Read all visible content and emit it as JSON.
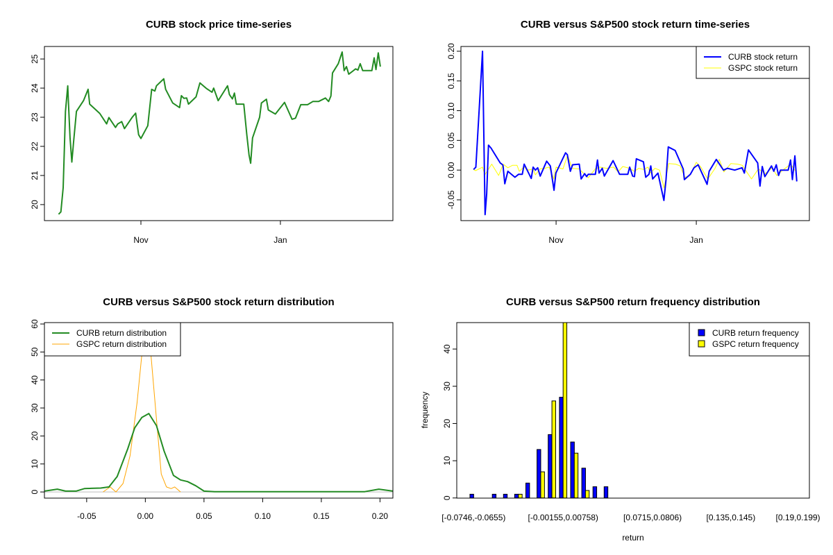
{
  "chart_data": [
    {
      "type": "line",
      "title": "CURB stock price time-series",
      "xlabel": "",
      "ylabel": "",
      "x_ticks": [
        {
          "value": 0,
          "label": "Nov"
        },
        {
          "value": 61,
          "label": "Jan"
        }
      ],
      "y_ticks": [
        20,
        21,
        22,
        23,
        24,
        25
      ],
      "xlim": [
        -42.2,
        110.2
      ],
      "ylim": [
        19.45,
        25.43
      ],
      "series": [
        {
          "name": "CURB",
          "color": "#228B22",
          "x": [
            -36,
            -35,
            -34,
            -33.5,
            -33,
            -32,
            -31.7,
            -31,
            -30.2,
            -29.5,
            -28.2,
            -25.1,
            -23.1,
            -22.4,
            -18,
            -15,
            -14,
            -11.1,
            -10.1,
            -8.4,
            -7.2,
            -3.9,
            -2.3,
            -1,
            0,
            3,
            4.7,
            6.1,
            6.8,
            10,
            10.8,
            13.9,
            16.9,
            17.7,
            18.8,
            20,
            20.8,
            24.1,
            25.8,
            28.6,
            31.1,
            31.8,
            33.8,
            37.9,
            38.7,
            40,
            40.9,
            41.7,
            45,
            46.3,
            47.3,
            48,
            48.8,
            51.9,
            52.7,
            54.9,
            55.7,
            58.8,
            62.8,
            66.1,
            67.6,
            69.9,
            72.9,
            75.2,
            77.7,
            80.7,
            82.1,
            83.1,
            83.8,
            86.3,
            88,
            88.9,
            89.9,
            90.9,
            93.9,
            94.9,
            95.9,
            97,
            101,
            102,
            102.8,
            103.8,
            104.7
          ],
          "y": [
            19.67,
            19.75,
            20.58,
            21.9,
            23.2,
            24.08,
            23.5,
            22.3,
            21.46,
            22.1,
            23.2,
            23.57,
            23.96,
            23.45,
            23.13,
            22.77,
            22.99,
            22.65,
            22.77,
            22.85,
            22.61,
            22.99,
            23.14,
            22.4,
            22.27,
            22.71,
            23.96,
            23.9,
            24.08,
            24.32,
            23.96,
            23.49,
            23.33,
            23.74,
            23.65,
            23.66,
            23.45,
            23.7,
            24.18,
            23.99,
            23.86,
            24.0,
            23.57,
            24.08,
            23.78,
            23.63,
            23.83,
            23.45,
            23.45,
            22.41,
            21.7,
            21.42,
            22.29,
            23.0,
            23.49,
            23.62,
            23.25,
            23.11,
            23.51,
            22.93,
            22.97,
            23.43,
            23.43,
            23.54,
            23.54,
            23.66,
            23.54,
            23.73,
            24.52,
            24.84,
            25.24,
            24.6,
            24.74,
            24.48,
            24.66,
            24.62,
            24.84,
            24.6,
            24.6,
            25.04,
            24.64,
            25.21,
            24.74
          ]
        }
      ]
    },
    {
      "type": "line",
      "title": "CURB versus S&P500 stock return time-series",
      "xlabel": "",
      "ylabel": "",
      "x_ticks": [
        {
          "value": 0,
          "label": "Nov"
        },
        {
          "value": 61,
          "label": "Jan"
        }
      ],
      "y_ticks": [
        -0.05,
        0.0,
        0.05,
        0.1,
        0.15,
        0.2
      ],
      "y_tick_labels": [
        "-0.05",
        "0.00",
        "0.05",
        "0.10",
        "0.15",
        "0.20"
      ],
      "xlim": [
        -41.4,
        110.2
      ],
      "ylim": [
        -0.085,
        0.208
      ],
      "legend": {
        "position": "top-right",
        "entries": [
          "CURB stock return",
          "GSPC stock return"
        ]
      },
      "series": [
        {
          "name": "CURB stock return",
          "color": "#0000FF",
          "x": [
            -35.9,
            -34.9,
            -33.5,
            -32,
            -30.9,
            -30.2,
            -29.4,
            -28.3,
            -24.3,
            -23.6,
            -23.1,
            -22.3,
            -21,
            -17.9,
            -16.3,
            -14.7,
            -13.9,
            -10.8,
            -10,
            -9,
            -8,
            -6.9,
            -4.1,
            -2.5,
            -0.9,
            -0.1,
            4.1,
            4.9,
            6.2,
            7.2,
            10.1,
            10.9,
            12.4,
            13.3,
            14,
            17.1,
            18,
            18.7,
            20.1,
            21,
            24.8,
            27.6,
            31.2,
            32,
            33.3,
            34.1,
            34.9,
            38,
            39,
            40.4,
            41.2,
            42,
            44.3,
            46.9,
            47.8,
            48.8,
            51.8,
            55.3,
            55.8,
            58.4,
            60,
            61.8,
            65.7,
            66.6,
            69.7,
            72.8,
            74.6,
            77.7,
            80.9,
            81.9,
            83.7,
            87.7,
            88.7,
            89.7,
            90.8,
            93.7,
            94.7,
            95.8,
            96.8,
            97.6,
            101,
            102,
            102.8,
            103.9,
            104.7
          ],
          "y": [
            0.001,
            0.005,
            0.1,
            0.2,
            -0.075,
            -0.04,
            0.042,
            0.037,
            0.012,
            0.01,
            0.008,
            -0.023,
            -0.002,
            -0.012,
            -0.007,
            -0.007,
            0.01,
            -0.014,
            0.005,
            0,
            0.004,
            -0.01,
            0.015,
            0.007,
            -0.034,
            -0.005,
            0.029,
            0.026,
            -0.002,
            0.009,
            0.01,
            -0.015,
            -0.006,
            -0.011,
            -0.007,
            -0.007,
            0.017,
            -0.005,
            0.003,
            -0.01,
            0.016,
            -0.007,
            -0.007,
            0.005,
            -0.01,
            -0.011,
            0.019,
            0.014,
            -0.012,
            -0.007,
            0.007,
            -0.015,
            -0.005,
            -0.051,
            -0.017,
            0.039,
            0.033,
            0.002,
            -0.016,
            -0.007,
            0.004,
            0.009,
            -0.024,
            -0.002,
            0.018,
            0,
            0.003,
            0,
            0.004,
            -0.005,
            0.034,
            0.012,
            -0.027,
            0.006,
            -0.011,
            0.007,
            -0.002,
            0.009,
            -0.009,
            0,
            0,
            0.017,
            -0.016,
            0.024,
            -0.019
          ]
        },
        {
          "name": "GSPC stock return",
          "color": "#FFFF00",
          "x": [
            -36,
            -35,
            -32,
            -31,
            -28,
            -25,
            -23,
            -21,
            -19,
            -17,
            -16,
            -14,
            -12,
            -10,
            -9,
            -7,
            -5,
            -3,
            -1,
            0,
            3,
            5,
            7,
            10,
            14,
            17,
            19,
            22,
            25,
            27,
            29,
            32,
            34,
            36,
            38,
            40,
            41,
            43,
            45,
            47,
            49,
            52,
            54,
            56,
            58,
            61,
            63,
            66,
            69,
            71,
            73,
            76,
            79,
            81,
            85,
            88,
            91,
            94,
            96,
            99,
            102,
            104
          ],
          "y": [
            0.001,
            -0.001,
            0.005,
            -0.008,
            0.01,
            -0.009,
            0.01,
            0.004,
            0.008,
            0.008,
            -0.002,
            0.005,
            0,
            0.002,
            -0.008,
            0.002,
            0.003,
            0.005,
            -0.015,
            0.005,
            0.002,
            0.025,
            0.003,
            0.002,
            -0.013,
            0.002,
            0.005,
            0.003,
            0.005,
            -0.003,
            0.006,
            0.003,
            -0.002,
            0.003,
            0.001,
            0.005,
            -0.005,
            0.003,
            0,
            -0.03,
            0.011,
            0.01,
            0.007,
            -0.012,
            -0.01,
            0.013,
            0.005,
            -0.015,
            0.002,
            0.018,
            -0.003,
            0.011,
            0.01,
            0.008,
            -0.015,
            0.002,
            -0.006,
            0.004,
            -0.009,
            0.001,
            0.01,
            -0.001
          ]
        }
      ]
    },
    {
      "type": "line",
      "title": "CURB versus S&P500 stock return distribution",
      "xlabel": "",
      "ylabel": "",
      "x_ticks": [
        -0.05,
        0.0,
        0.05,
        0.1,
        0.15,
        0.2
      ],
      "x_tick_labels": [
        "-0.05",
        "0.00",
        "0.05",
        "0.10",
        "0.15",
        "0.20"
      ],
      "y_ticks": [
        0,
        10,
        20,
        30,
        40,
        50,
        60
      ],
      "xlim": [
        -0.086,
        0.211
      ],
      "ylim": [
        -2.2,
        60.5
      ],
      "legend": {
        "position": "top-left",
        "entries": [
          "CURB return distribution",
          "GSPC return distribution"
        ]
      },
      "series": [
        {
          "name": "CURB return distribution",
          "color": "#228B22",
          "x": [
            -0.086,
            -0.075,
            -0.068,
            -0.059,
            -0.052,
            -0.046,
            -0.038,
            -0.031,
            -0.024,
            -0.015,
            -0.009,
            -0.003,
            0.003,
            0.0095,
            0.016,
            0.024,
            0.03,
            0.036,
            0.043,
            0.05,
            0.059,
            0.187,
            0.199,
            0.211
          ],
          "y": [
            0.3,
            1.0,
            0.3,
            0.3,
            1.2,
            1.3,
            1.4,
            1.8,
            5.5,
            15.4,
            22.9,
            26.6,
            28,
            23.7,
            14.6,
            5.9,
            4.3,
            3.7,
            2.2,
            0.3,
            0.1,
            0.1,
            1.0,
            0.3
          ]
        },
        {
          "name": "GSPC return distribution",
          "color": "#FFA500",
          "x": [
            -0.036,
            -0.03,
            -0.025,
            -0.019,
            -0.013,
            -0.007,
            -0.003,
            0.001,
            0.005,
            0.0095,
            0.0136,
            0.018,
            0.022,
            0.025,
            0.03
          ],
          "y": [
            0,
            1.8,
            0,
            3,
            13,
            32,
            49,
            66,
            48,
            26,
            6.4,
            1.8,
            1.2,
            1.8,
            0
          ]
        }
      ]
    },
    {
      "type": "bar",
      "title": "CURB versus S&P500 return frequency distribution",
      "xlabel": "return",
      "ylabel": "frequency",
      "y_ticks": [
        0,
        10,
        20,
        30,
        40
      ],
      "ylim": [
        0,
        47
      ],
      "category_label_indices": [
        0,
        8,
        16,
        23,
        29
      ],
      "category_labels": [
        "[-0.0746,-0.0655)",
        "[-0.00155,0.00758)",
        "[0.0715,0.0806)",
        "[0.135,0.145)",
        "[0.19,0.199)"
      ],
      "legend": {
        "position": "top-right",
        "entries": [
          "CURB return frequency",
          "GSPC return frequency"
        ]
      },
      "series": [
        {
          "name": "CURB return frequency",
          "color": "#0000FF",
          "values": [
            1,
            0,
            1,
            1,
            1,
            4,
            13,
            17,
            27,
            15,
            8,
            3,
            3,
            0,
            0,
            0,
            0,
            0,
            0,
            0,
            0,
            0,
            0,
            0,
            0,
            0,
            0,
            0,
            0,
            0
          ]
        },
        {
          "name": "GSPC return frequency",
          "color": "#FFFF00",
          "values": [
            0,
            0,
            0,
            0,
            1,
            0,
            7,
            26,
            47,
            12,
            2,
            0,
            0,
            0,
            0,
            0,
            0,
            0,
            0,
            0,
            0,
            0,
            0,
            0,
            0,
            0,
            0,
            0,
            0,
            0
          ]
        }
      ]
    }
  ]
}
